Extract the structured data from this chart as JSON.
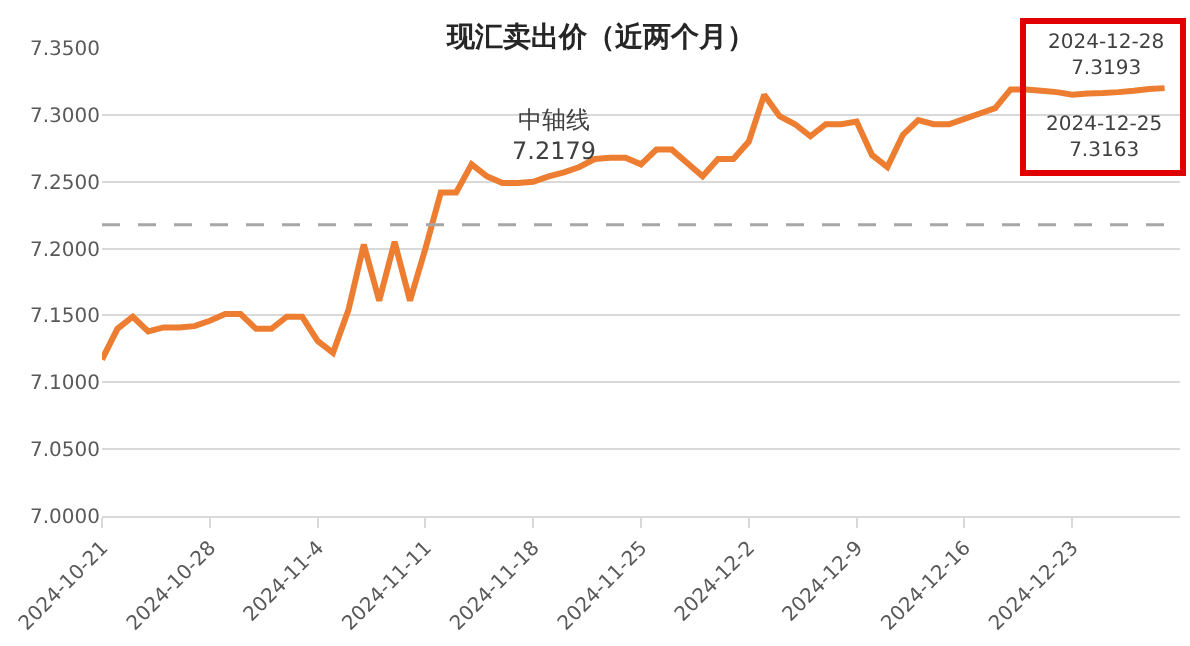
{
  "chart_data": {
    "type": "line",
    "title": "现汇卖出价（近两个月）",
    "x": [
      "2024-10-21",
      "2024-10-22",
      "2024-10-23",
      "2024-10-24",
      "2024-10-25",
      "2024-10-26",
      "2024-10-27",
      "2024-10-28",
      "2024-10-29",
      "2024-10-30",
      "2024-10-31",
      "2024-11-01",
      "2024-11-02",
      "2024-11-03",
      "2024-11-04",
      "2024-11-05",
      "2024-11-06",
      "2024-11-07",
      "2024-11-08",
      "2024-11-09",
      "2024-11-10",
      "2024-11-11",
      "2024-11-12",
      "2024-11-13",
      "2024-11-14",
      "2024-11-15",
      "2024-11-16",
      "2024-11-17",
      "2024-11-18",
      "2024-11-19",
      "2024-11-20",
      "2024-11-21",
      "2024-11-22",
      "2024-11-23",
      "2024-11-24",
      "2024-11-25",
      "2024-11-26",
      "2024-11-27",
      "2024-11-28",
      "2024-11-29",
      "2024-11-30",
      "2024-12-01",
      "2024-12-02",
      "2024-12-03",
      "2024-12-04",
      "2024-12-05",
      "2024-12-06",
      "2024-12-07",
      "2024-12-08",
      "2024-12-09",
      "2024-12-10",
      "2024-12-11",
      "2024-12-12",
      "2024-12-13",
      "2024-12-14",
      "2024-12-15",
      "2024-12-16",
      "2024-12-17",
      "2024-12-18",
      "2024-12-19",
      "2024-12-20",
      "2024-12-21",
      "2024-12-22",
      "2024-12-23",
      "2024-12-24",
      "2024-12-25",
      "2024-12-26",
      "2024-12-27",
      "2024-12-28",
      "2024-12-29"
    ],
    "series": [
      {
        "color": "#ed7d31",
        "values": [
          7.117,
          7.14,
          7.149,
          7.138,
          7.141,
          7.141,
          7.142,
          7.146,
          7.151,
          7.151,
          7.14,
          7.14,
          7.149,
          7.149,
          7.131,
          7.122,
          7.154,
          7.203,
          7.161,
          7.205,
          7.161,
          7.2,
          7.242,
          7.242,
          7.263,
          7.254,
          7.249,
          7.249,
          7.25,
          7.254,
          7.257,
          7.261,
          7.267,
          7.268,
          7.268,
          7.263,
          7.274,
          7.274,
          7.264,
          7.254,
          7.267,
          7.267,
          7.28,
          7.315,
          7.299,
          7.293,
          7.284,
          7.293,
          7.293,
          7.295,
          7.27,
          7.261,
          7.285,
          7.296,
          7.293,
          7.293,
          7.297,
          7.301,
          7.305,
          7.319,
          7.319,
          7.318,
          7.317,
          7.315,
          7.316,
          7.3163,
          7.317,
          7.318,
          7.3193,
          7.32
        ]
      }
    ],
    "xlim": [
      "2024-10-21",
      "2024-12-30"
    ],
    "xticks": [
      {
        "value": "2024-10-21",
        "label": "2024-10-21"
      },
      {
        "value": "2024-10-28",
        "label": "2024-10-28"
      },
      {
        "value": "2024-11-04",
        "label": "2024-11-4"
      },
      {
        "value": "2024-11-11",
        "label": "2024-11-11"
      },
      {
        "value": "2024-11-18",
        "label": "2024-11-18"
      },
      {
        "value": "2024-11-25",
        "label": "2024-11-25"
      },
      {
        "value": "2024-12-02",
        "label": "2024-12-2"
      },
      {
        "value": "2024-12-09",
        "label": "2024-12-9"
      },
      {
        "value": "2024-12-16",
        "label": "2024-12-16"
      },
      {
        "value": "2024-12-23",
        "label": "2024-12-23"
      }
    ],
    "ylim": [
      7.0,
      7.35
    ],
    "yticks": [
      {
        "value": 7.0,
        "label": "7.0000"
      },
      {
        "value": 7.05,
        "label": "7.0500"
      },
      {
        "value": 7.1,
        "label": "7.1000"
      },
      {
        "value": 7.15,
        "label": "7.1500"
      },
      {
        "value": 7.2,
        "label": "7.2000"
      },
      {
        "value": 7.25,
        "label": "7.2500"
      },
      {
        "value": 7.3,
        "label": "7.3000"
      },
      {
        "value": 7.35,
        "label": "7.3500"
      }
    ],
    "ref_lines": [
      {
        "axis": "y",
        "value": 7.2179,
        "label": "中轴线\n7.2179",
        "color": "#a6a6a6",
        "line_style": "dashed"
      }
    ],
    "annotations": [
      {
        "text": "2024-12-28\n7.3193",
        "x": "2024-12-28",
        "y": 7.3193
      },
      {
        "text": "2024-12-25\n7.3163",
        "x": "2024-12-25",
        "y": 7.3163
      }
    ],
    "grid": "y",
    "legend": false,
    "marker": "none",
    "line_style": "solid"
  }
}
